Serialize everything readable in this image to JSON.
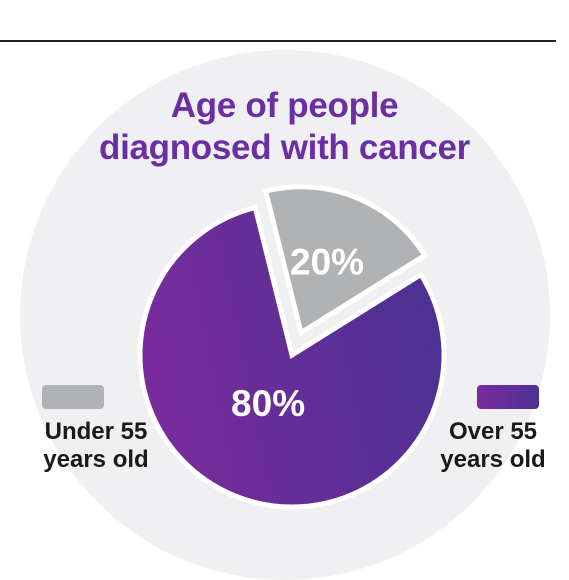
{
  "chart_data": {
    "type": "pie",
    "title_lines": [
      "Age of people",
      "diagnosed with cancer"
    ],
    "slices": [
      {
        "label": "Under 55 years old",
        "value": 20,
        "value_label": "20%",
        "color": "#b1b2b4",
        "legend_lines": [
          "Under 55",
          "years old"
        ]
      },
      {
        "label": "Over 55 years old",
        "value": 80,
        "value_label": "80%",
        "color": "#5e2a96",
        "legend_lines": [
          "Over 55",
          "years old"
        ]
      }
    ],
    "colors": {
      "title": "#6a2ea5",
      "background_circle": "#f0f0f2",
      "purple_start": "#7a2b9c",
      "purple_end": "#4c3192",
      "grey": "#b1b2b4",
      "legend_text": "#1a1a1a"
    },
    "exploded_slice": "Under 55 years old",
    "legend_placement": "sides"
  }
}
